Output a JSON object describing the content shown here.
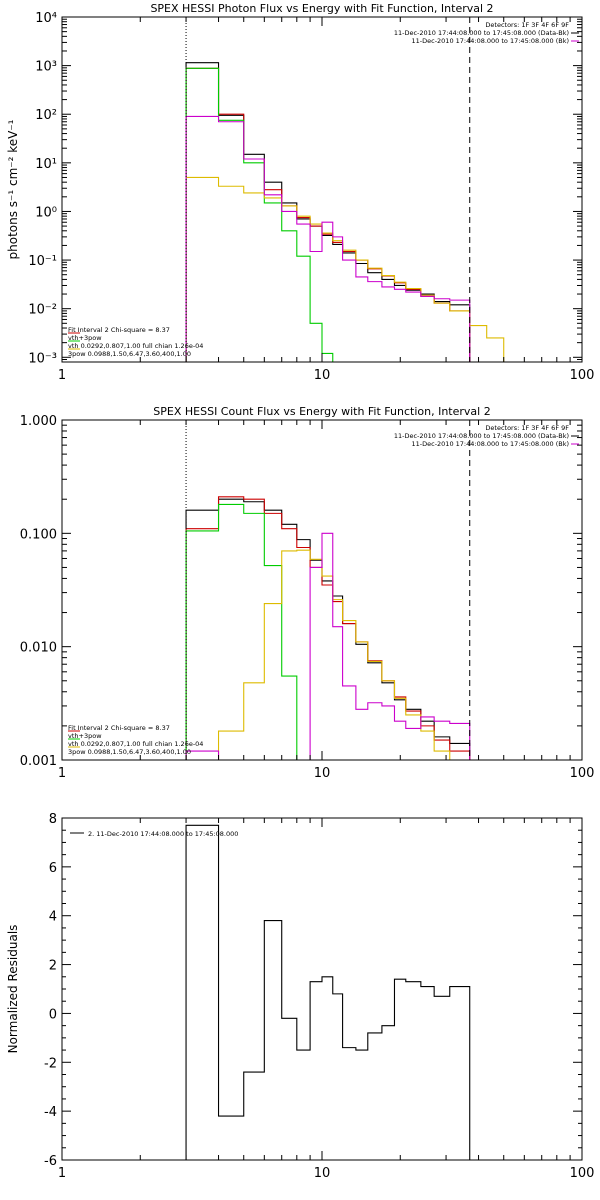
{
  "chart_data": [
    {
      "type": "line",
      "title": "SPEX HESSI Photon Flux vs Energy with Fit Function, Interval 2",
      "ylabel": "photons s⁻¹ cm⁻² keV⁻¹",
      "xlabel": "",
      "xscale": "log",
      "yscale": "log",
      "xlim": [
        1,
        100
      ],
      "ylim": [
        0.0008,
        10000
      ],
      "xticks": [
        1,
        10,
        100
      ],
      "xtick_labels": [
        "1",
        "10",
        "100"
      ],
      "yticks": [
        0.001,
        0.01,
        0.1,
        1,
        10,
        100,
        1000,
        10000
      ],
      "ytick_labels": [
        "10⁻³",
        "10⁻²",
        "10⁻¹",
        "10⁰",
        "10¹",
        "10²",
        "10³",
        "10⁴"
      ],
      "vlines": [
        {
          "x": 3,
          "style": "dotted"
        },
        {
          "x": 37,
          "style": "dashed"
        }
      ],
      "legend_top": [
        {
          "text": "Detectors: 1F 3F 4F 6F 9F",
          "color": "#000000"
        },
        {
          "text": "11-Dec-2010 17:44:08.000 to 17:45:08.000 (Data-Bk)",
          "color": "#000000"
        },
        {
          "text": "11-Dec-2010 17:44:08.000 to 17:45:08.000 (Bk)",
          "color": "#cc00cc"
        }
      ],
      "legend_bottom": [
        {
          "text": "Fit Interval  2    Chi-square = 8.37",
          "color": "#000000"
        },
        {
          "text": "vth+3pow",
          "color": "#cc0000"
        },
        {
          "text": "vth 0.0292,0.807,1.00  full chian 1.26e-04",
          "color": "#00cc00"
        },
        {
          "text": "3pow 0.0988,1.50,6.47,3.60,400,1.00",
          "color": "#ddbb00"
        }
      ],
      "series": [
        {
          "color": "#000000",
          "edges": [
            3,
            4,
            5,
            6,
            7,
            8,
            9,
            10,
            11,
            12,
            13.5,
            15,
            17,
            19,
            21,
            24,
            27,
            31,
            37
          ],
          "values": [
            1150,
            95,
            15,
            4,
            1.5,
            0.7,
            0.5,
            0.32,
            0.21,
            0.14,
            0.085,
            0.055,
            0.04,
            0.03,
            0.024,
            0.02,
            0.014,
            0.012
          ]
        },
        {
          "color": "#cc0000",
          "edges": [
            3,
            4,
            5,
            6,
            7,
            8,
            9,
            10,
            11,
            12,
            13.5,
            15,
            17,
            19,
            21,
            24,
            27,
            31,
            37
          ],
          "values": [
            880,
            100,
            12,
            2.8,
            1.3,
            0.75,
            0.5,
            0.34,
            0.23,
            0.15,
            0.1,
            0.066,
            0.047,
            0.034,
            0.025,
            0.018,
            0.013,
            0.009
          ]
        },
        {
          "color": "#00cc00",
          "edges": [
            3,
            4,
            5,
            6,
            7,
            8,
            9,
            10,
            11
          ],
          "values": [
            880,
            75,
            10,
            1.5,
            0.4,
            0.12,
            0.005,
            0.0012
          ]
        },
        {
          "color": "#ddbb00",
          "edges": [
            3,
            4,
            5,
            6,
            7,
            8,
            9,
            10,
            11,
            12,
            13.5,
            15,
            17,
            19,
            21,
            24,
            27,
            31,
            37,
            43,
            50
          ],
          "values": [
            5,
            3.3,
            2.4,
            1.9,
            1.3,
            0.8,
            0.55,
            0.36,
            0.25,
            0.16,
            0.1,
            0.068,
            0.048,
            0.035,
            0.026,
            0.019,
            0.013,
            0.009,
            0.0045,
            0.0025
          ]
        },
        {
          "color": "#cc00cc",
          "edges": [
            3,
            4,
            5,
            6,
            7,
            8,
            9,
            10,
            11,
            12,
            13.5,
            15,
            17,
            19,
            21,
            24,
            27,
            31,
            37
          ],
          "values": [
            90,
            70,
            12,
            2.2,
            1.0,
            0.55,
            0.15,
            0.6,
            0.3,
            0.1,
            0.045,
            0.036,
            0.028,
            0.025,
            0.022,
            0.018,
            0.016,
            0.015
          ]
        }
      ]
    },
    {
      "type": "line",
      "title": "SPEX HESSI Count Flux vs Energy with Fit Function, Interval 2",
      "ylabel": "",
      "xlabel": "",
      "xscale": "log",
      "yscale": "log",
      "xlim": [
        1,
        100
      ],
      "ylim": [
        0.001,
        1
      ],
      "xticks": [
        1,
        10,
        100
      ],
      "xtick_labels": [
        "1",
        "10",
        "100"
      ],
      "yticks": [
        0.001,
        0.01,
        0.1,
        1
      ],
      "ytick_labels": [
        "0.001",
        "0.010",
        "0.100",
        "1.000"
      ],
      "vlines": [
        {
          "x": 3,
          "style": "dotted"
        },
        {
          "x": 37,
          "style": "dashed"
        }
      ],
      "legend_top": [
        {
          "text": "Detectors: 1F 3F 4F 6F 9F",
          "color": "#000000"
        },
        {
          "text": "11-Dec-2010 17:44:08.000 to 17:45:08.000 (Data-Bk)",
          "color": "#000000"
        },
        {
          "text": "11-Dec-2010 17:44:08.000 to 17:45:08.000 (Bk)",
          "color": "#cc00cc"
        }
      ],
      "legend_bottom": [
        {
          "text": "Fit Interval  2    Chi-square = 8.37",
          "color": "#000000"
        },
        {
          "text": "vth+3pow",
          "color": "#cc0000"
        },
        {
          "text": "vth 0.0292,0.807,1.00  full chian 1.26e-04",
          "color": "#00cc00"
        },
        {
          "text": "3pow 0.0988,1.50,6.47,3.60,400,1.00",
          "color": "#ddbb00"
        }
      ],
      "series": [
        {
          "color": "#000000",
          "edges": [
            3,
            4,
            5,
            6,
            7,
            8,
            9,
            10,
            11,
            12,
            13.5,
            15,
            17,
            19,
            21,
            24,
            27,
            31,
            37
          ],
          "values": [
            0.16,
            0.2,
            0.19,
            0.16,
            0.12,
            0.088,
            0.058,
            0.038,
            0.028,
            0.016,
            0.0105,
            0.0072,
            0.0048,
            0.0034,
            0.0028,
            0.0022,
            0.0016,
            0.0014
          ]
        },
        {
          "color": "#cc0000",
          "edges": [
            3,
            4,
            5,
            6,
            7,
            8,
            9,
            10,
            11,
            12,
            13.5,
            15,
            17,
            19,
            21,
            24,
            27,
            31,
            37
          ],
          "values": [
            0.11,
            0.21,
            0.2,
            0.15,
            0.11,
            0.075,
            0.05,
            0.035,
            0.025,
            0.016,
            0.011,
            0.0075,
            0.005,
            0.0036,
            0.0027,
            0.002,
            0.0015,
            0.0012
          ]
        },
        {
          "color": "#00cc00",
          "edges": [
            3,
            4,
            5,
            6,
            7,
            8,
            9
          ],
          "values": [
            0.105,
            0.18,
            0.15,
            0.052,
            0.0055,
            0.0008
          ]
        },
        {
          "color": "#ddbb00",
          "edges": [
            3,
            4,
            5,
            6,
            7,
            8,
            9,
            10,
            11,
            12,
            13.5,
            15,
            17,
            19,
            21,
            24,
            27,
            31,
            37
          ],
          "values": [
            0.00045,
            0.0018,
            0.0048,
            0.024,
            0.07,
            0.071,
            0.059,
            0.042,
            0.026,
            0.017,
            0.011,
            0.0074,
            0.005,
            0.0035,
            0.0025,
            0.0018,
            0.0012,
            0.0008
          ]
        },
        {
          "color": "#cc00cc",
          "edges": [
            3,
            4,
            5,
            6,
            7,
            8,
            9,
            10,
            11,
            12,
            13.5,
            15,
            17,
            19,
            21,
            24,
            27,
            31,
            37
          ],
          "values": [
            0.0012,
            0.0009,
            0.00085,
            0.0008,
            0.00078,
            0.0009,
            0.05,
            0.1,
            0.015,
            0.0045,
            0.0028,
            0.0032,
            0.003,
            0.0022,
            0.0019,
            0.0024,
            0.0022,
            0.0021
          ]
        }
      ]
    },
    {
      "type": "line",
      "title": "",
      "ylabel": "Normalized Residuals",
      "xlabel": "",
      "xscale": "log",
      "yscale": "linear",
      "xlim": [
        1,
        100
      ],
      "ylim": [
        -6,
        8
      ],
      "xticks": [
        1,
        10,
        100
      ],
      "xtick_labels": [
        "1",
        "10",
        "100"
      ],
      "yticks": [
        -6,
        -4,
        -2,
        0,
        2,
        4,
        6,
        8
      ],
      "ytick_labels": [
        "-6",
        "-4",
        "-2",
        "0",
        "2",
        "4",
        "6",
        "8"
      ],
      "legend_top": [
        {
          "text": "2. 11-Dec-2010 17:44:08.000 to 17:45:08.000",
          "color": "#000000"
        }
      ],
      "series": [
        {
          "color": "#000000",
          "edges": [
            3,
            4,
            5,
            6,
            7,
            8,
            9,
            10,
            11,
            12,
            13.5,
            15,
            17,
            19,
            21,
            24,
            27,
            31,
            37
          ],
          "values": [
            7.7,
            -4.2,
            -2.4,
            3.8,
            -0.2,
            -1.5,
            1.3,
            1.5,
            0.8,
            -1.4,
            -1.5,
            -0.8,
            -0.5,
            1.4,
            1.3,
            1.1,
            0.7,
            1.1
          ]
        }
      ]
    }
  ]
}
